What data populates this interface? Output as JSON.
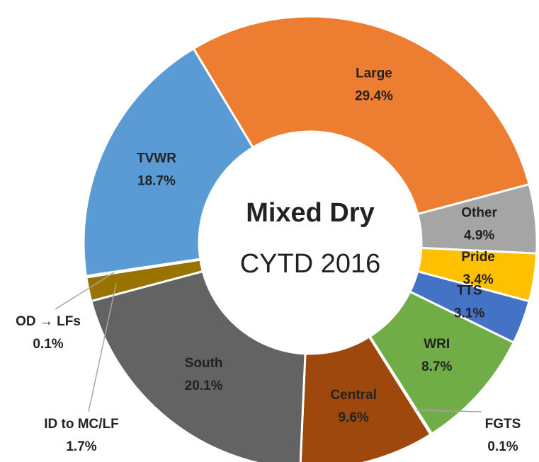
{
  "chart_data": {
    "type": "donut",
    "title": "Mixed Dry",
    "subtitle": "CYTD 2016",
    "categories": [
      "Large",
      "Other",
      "Pride",
      "TTS",
      "WRI",
      "FGTS",
      "Central",
      "South",
      "ID to MC/LF",
      "OD → LFs",
      "TVWR"
    ],
    "values": [
      29.4,
      4.9,
      3.4,
      3.1,
      8.7,
      0.1,
      9.6,
      20.1,
      1.7,
      0.1,
      18.7
    ],
    "value_labels": [
      "29.4%",
      "4.9%",
      "3.4%",
      "3.1%",
      "8.7%",
      "0.1%",
      "9.6%",
      "20.1%",
      "1.7%",
      "0.1%",
      "18.7%"
    ],
    "colors": [
      "#ED7D31",
      "#A5A5A5",
      "#FFC000",
      "#4472C4",
      "#70AD47",
      "#255E91",
      "#9E480E",
      "#636363",
      "#997300",
      "#264478",
      "#5B9BD5"
    ]
  }
}
